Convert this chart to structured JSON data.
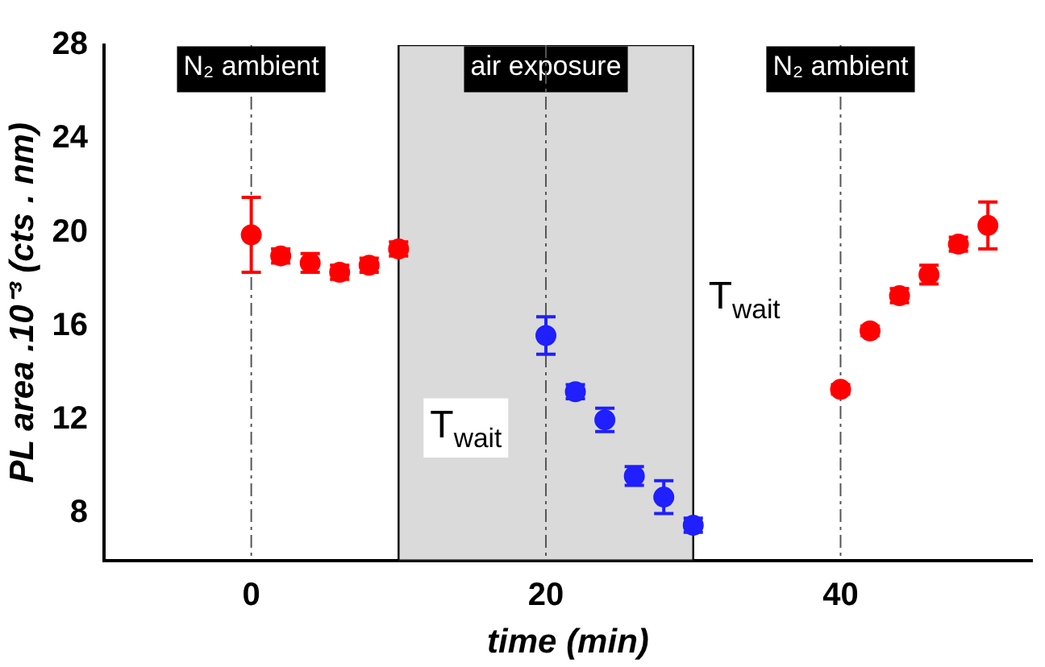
{
  "chart_data": {
    "type": "scatter",
    "xlabel": "time (min)",
    "ylabel": "PL area .10⁻³ (cts . nm)",
    "xlim": [
      -10,
      53
    ],
    "xticks": [
      0,
      20,
      40
    ],
    "ylim": [
      6,
      28
    ],
    "yticks": [
      8,
      12,
      16,
      20,
      24,
      28
    ],
    "grid": false,
    "legend": false,
    "marker": "circle",
    "series": [
      {
        "color": "#ff0000",
        "x": [
          0,
          2,
          4,
          6,
          8,
          10
        ],
        "values": [
          19.9,
          19.0,
          18.7,
          18.3,
          18.6,
          19.3
        ],
        "errors": [
          1.6,
          0.3,
          0.4,
          0.3,
          0.3,
          0.3
        ]
      },
      {
        "color": "#1f1fff",
        "x": [
          20,
          22,
          24,
          26,
          28,
          30
        ],
        "values": [
          15.6,
          13.2,
          12.0,
          9.6,
          8.7,
          7.5
        ],
        "errors": [
          0.8,
          0.3,
          0.5,
          0.4,
          0.7,
          0.3
        ]
      },
      {
        "color": "#ff0000",
        "x": [
          40,
          42,
          44,
          46,
          48,
          50
        ],
        "values": [
          13.3,
          15.8,
          17.3,
          18.2,
          19.5,
          20.3
        ],
        "errors": [
          0.2,
          0.2,
          0.3,
          0.4,
          0.3,
          1.0
        ]
      }
    ],
    "ref_lines": [
      {
        "axis": "x",
        "value": 0,
        "label": "N₂ ambient",
        "color": "#555555",
        "line_style": "dashdot"
      },
      {
        "axis": "x",
        "value": 20,
        "color": "#555555",
        "line_style": "dashdot"
      },
      {
        "axis": "x",
        "value": 40,
        "label": "N₂ ambient",
        "color": "#555555",
        "line_style": "dashdot"
      }
    ],
    "bands": [
      {
        "axis": "x",
        "from": 10,
        "to": 30,
        "label": "air exposure",
        "color": "#dadada"
      }
    ],
    "annotations": [
      "T$_{wait}$",
      "T$_{wait}$"
    ]
  }
}
